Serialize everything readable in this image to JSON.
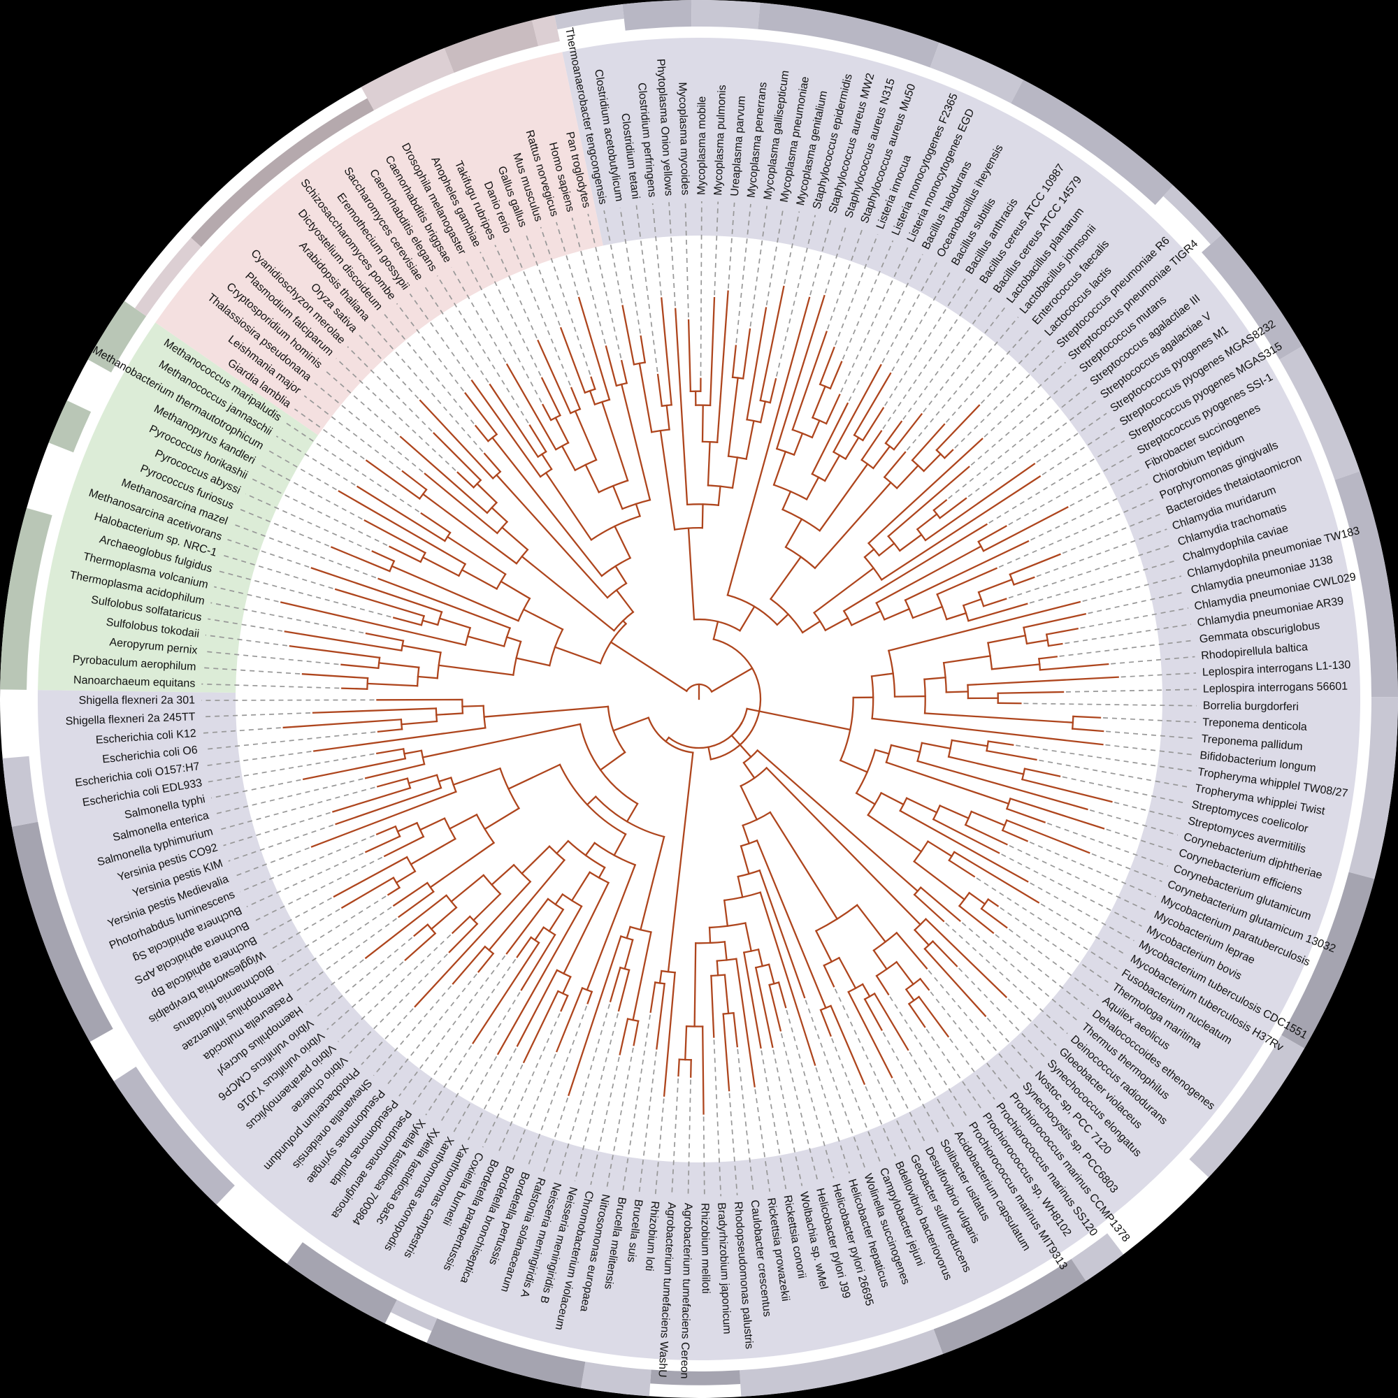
{
  "figure": {
    "kind": "circular-phylogenetic-tree",
    "background_color": "#000000",
    "canvas_color": "#ffffff",
    "tree_color": "#ae451d",
    "connector_color": "#979797",
    "label_color": "#111111",
    "domains": [
      {
        "id": "bacteria",
        "sector_color": "#dcdbe7",
        "ring_shades": [
          "#c8c7d3",
          "#a5a4b0",
          "#b8b7c4"
        ],
        "members": [
          "Thermoanaerobacter tengcongensis",
          "Clostridium acetobutylicum",
          "Clostridium tetani",
          "Clostridium perfringens",
          "Phytoplasma Onion yellows",
          "Mycoplasma mycoides",
          "Mycoplasma mobile",
          "Mycoplasma pulmonis",
          "Ureaplasma parvum",
          "Mycoplasma penerrans",
          "Mycoplasma gallisepticum",
          "Mycoplasma pneumoniae",
          "Mycoplasma genitalium",
          "Staphylococcus epidermidis",
          "Staphylococcus aureus MW2",
          "Staphylococcus aureus N315",
          "Staphylococcus aureus Mu50",
          "Listeria innocua",
          "Listeria monocytogenes F2365",
          "Listeria monocytogenes EGD",
          "Bacillus halodurans",
          "Oceanobacillus iheyensis",
          "Bacillus subtilis",
          "Bacillus anthracis",
          "Bacillus cereus ATCC 10987",
          "Bacillus cereus ATCC 14579",
          "Lactobacillus plantarum",
          "Lactobacillus johnsonii",
          "Enterococcus faecalis",
          "Lactococcus lactis",
          "Streptococcus pneumoniae R6",
          "Streptococcus pneumoniae TIGR4",
          "Streptococcus mutans",
          "Streptococcus agalactiae III",
          "Streptococcus agalactiae V",
          "Streptococcus pyogenes M1",
          "Streptococcus pyogenes MGAS8232",
          "Streptococcus pyogenes MGAS315",
          "Streptococcus pyogenes SSI-1",
          "Fibrobacter succinogenes",
          "Chiorobium tepidum",
          "Porphyromonas gingivalls",
          "Bacteroides thetaiotaomicron",
          "Chlamydia muridarum",
          "Chlamydia trachomatis",
          "Chalmydophila caviae",
          "Chlamydophila pneumoniae TW183",
          "Chlamydia pneumoniae J138",
          "Chlamydia pneumoniae CWL029",
          "Chlamydia pneumoniae AR39",
          "Gemmata obscuriglobus",
          "Rhodopirellula baltica",
          "Leplospira interrogans L1-130",
          "Leplospira interrogans 56601",
          "Borrelia burgdorferi",
          "Treponema denticola",
          "Treponema pallidum",
          "Bifidobacterium longum",
          "Tropheryma whipplel TW08/27",
          "Tropheryma whipplei Twist",
          "Streptomyces coelicolor",
          "Streptomyces avermitilis",
          "Corynebacterium diphtheriae",
          "Corynebacterium efficiens",
          "Corynebacterium glutamicum",
          "Corynebacterium glutamicum 13032",
          "Mycobacterium paratuberculosis",
          "Mycobacterium leprae",
          "Mycobacterium bovis",
          "Mycobacterium tuberculosis CDC1551",
          "Mycobacterium tuberculosis H37Rv",
          "Fusobacterium nucleatum",
          "Thermologa maritima",
          "Aquilex aeolicus",
          "Dehalococcoides ethenogenes",
          "Thermus thermophilus",
          "Deinococcus radiodurans",
          "Gloeobacter violaceus",
          "Synechococcus elongatus",
          "Nostoc sp, PCC 7120",
          "Synechocystis sp. PCC6803",
          "Prochiorococcus marinus CCMP1378",
          "Prochiorococcus marinus SS120",
          "Prochiorococcus sp, WH8102",
          "Prochiorococcus marinus MIT9313",
          "Acidobacterium capsulatum",
          "Solibacter usitatus",
          "Desulfovibrio vulgaris",
          "Geobacter sulfurreducens",
          "Bdellovibrio bacteriovorus",
          "Campylobacter jejuni",
          "Wolinella succinogenes",
          "Helicobacter hepaticus",
          "Helicobacter pylori 26695",
          "Helicobacter pylori J99",
          "Wolbachia sp. wMel",
          "Rickettsia conorii",
          "Rickettsia prowazekii",
          "Caulobacter crescentus",
          "Rhodopseudomonas palustris",
          "Bradyrhizobium japonicum",
          "Rhizobium meliloti",
          "Agrobacterium tumefaciens Cereon",
          "Agrobacterium tumefaciens WashU",
          "Rhizobium loti",
          "Brucella suis",
          "Brucella melitensis",
          "Nitrosomonas europaea",
          "Chromobacterium violaceum",
          "Neisseria meningiridis B",
          "Neisseria meningiridis A",
          "Ralstonia solanacearum",
          "Bordetella pertussis",
          "Bordetella bronchiseptica",
          "Bordetella parapertussis",
          "Coxiella burnetii",
          "Xanthomonas campestris",
          "Xanthomonas axonopodis",
          "Xylella fastidiosa 9a5c",
          "Xylella fastidiosa 700984",
          "Pseudomonas aeruginosa",
          "Pseudomonas pulida",
          "Pseudomonas syringae",
          "Shewanella oneidensis",
          "Photobacterium profundum",
          "Vibrio cholerae",
          "Vibrio parahaemolylicus",
          "Vibrio vulnificus YJ016",
          "Vibrio vulnificus CMCP6",
          "Haemophilus ducreyl",
          "Pasteurella multocida",
          "Haemophilus influenzae",
          "Blochmannia floridanus",
          "Wigglesworthia brevipalpis",
          "Buchnera aphidicola Bp",
          "Buchnera aphidicola APS",
          "Buchnera aphidicola Sg",
          "Photorhabdus luminescens",
          "Yersinia pestis Medievalia",
          "Yersinia pestis KIM",
          "Yersinia pestis CO92",
          "Salmonella typhimurium",
          "Salmonella enterica",
          "Salmonella typhi",
          "Escherichia coli EDL933",
          "Escherichia coli O157:H7",
          "Escherichia coli O6",
          "Escherichia coli K12",
          "Shigella flexneri 2a 245TT",
          "Shigella flexneri 2a 301"
        ]
      },
      {
        "id": "archaea",
        "sector_color": "#dcecd7",
        "ring_shades": [
          "#b9c6b6",
          "#9cab9a",
          "#aab8a8"
        ],
        "members": [
          "Nanoarchaeum equitans",
          "Pyrobaculum aerophilum",
          "Aeropyrum pernix",
          "Sulfolobus tokodaii",
          "Sulfolobus solfataricus",
          "Thermoplasma acidophilum",
          "Thermoplasma volcanium",
          "Archaeoglobus fulgidus",
          "Halobacterium sp. NRC-1",
          "Methanosarcina acetivorans",
          "Methanosarcina mazel",
          "Pyrococcus furiosus",
          "Pyrococcus abyssi",
          "Pyrococcus horikashii",
          "Methanopyrus kandleri",
          "Methanobacterium thermautotrophicum",
          "Methanococcus jannaschii",
          "Methanococcus maripaludis"
        ]
      },
      {
        "id": "eukaryota",
        "sector_color": "#f4e0e0",
        "ring_shades": [
          "#dccfd3",
          "#b5a9ad",
          "#c9bcc0"
        ],
        "members": [
          "Giardia lamblia",
          "Leishmania major",
          "Thalassiosira pseudonana",
          "Cryptosporidium hominis",
          "Plasmodium falciparum",
          "Cyanidioschyzon merolae",
          "Oryza sativa",
          "Arabidopsis thaliana",
          "Dictyostelium discoideum",
          "Schizosaccharomyces pombe",
          "Eremothecium gossypii",
          "Saccharomyces cerevisiae",
          "Caenorhabditis elegans",
          "Caenorhabditis briggsae",
          "Drosophila melanogaster",
          "Anopheles gambiae",
          "Takifugu rubripes",
          "Danio rerio",
          "Gallus gallus",
          "Mus musculus",
          "Rattus norvegicus",
          "Homo sapiens",
          "Pan troglodytes"
        ]
      }
    ]
  }
}
